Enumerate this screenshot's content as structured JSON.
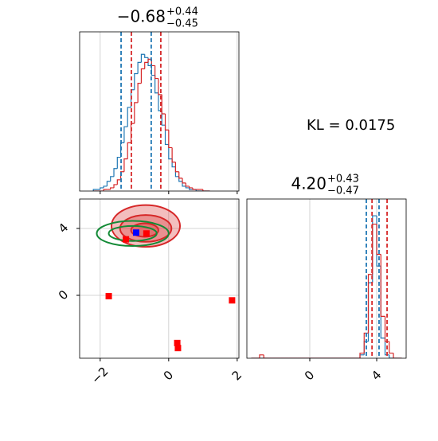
{
  "chart_data": [
    {
      "type": "histogram",
      "title": {
        "value": "−0.68",
        "plus": "+0.44",
        "minus": "−0.45"
      },
      "bins": [
        -2.2,
        -2.1,
        -2.0,
        -1.9,
        -1.8,
        -1.7,
        -1.6,
        -1.5,
        -1.4,
        -1.3,
        -1.2,
        -1.1,
        -1.0,
        -0.9,
        -0.8,
        -0.7,
        -0.6,
        -0.5,
        -0.4,
        -0.3,
        -0.2,
        -0.1,
        0.0,
        0.1,
        0.2,
        0.3,
        0.4,
        0.5,
        0.6,
        0.7,
        0.8,
        0.9,
        1.0,
        1.1,
        1.2
      ],
      "series": [
        {
          "color": "#1f77b4",
          "values": [
            1,
            1,
            2,
            3,
            6,
            9,
            14,
            21,
            30,
            40,
            52,
            63,
            73,
            80,
            85,
            83,
            78,
            72,
            61,
            50,
            41,
            29,
            20,
            15,
            9,
            6,
            3,
            2,
            1,
            1,
            0,
            0,
            0,
            0
          ]
        },
        {
          "color": "#d62728",
          "values": [
            0,
            0,
            0,
            1,
            1,
            2,
            4,
            7,
            12,
            20,
            30,
            42,
            55,
            67,
            76,
            80,
            82,
            78,
            70,
            60,
            48,
            38,
            27,
            18,
            12,
            8,
            5,
            3,
            2,
            1,
            1,
            1,
            0,
            0
          ]
        }
      ],
      "lines": [
        {
          "color": "#1f77b4",
          "values": [
            -1.39,
            -0.51
          ]
        },
        {
          "color": "#d62728",
          "values": [
            -1.09,
            -0.23
          ]
        }
      ],
      "xlim": [
        -2.6,
        2.05
      ],
      "ylim": [
        0,
        99
      ],
      "xticks": [
        -2,
        0,
        2
      ],
      "grid": true
    },
    {
      "type": "scatter",
      "series": [
        {
          "color": "#ff0000",
          "x": [
            -1.75,
            1.85,
            0.25,
            0.27,
            -1.25,
            -0.65
          ],
          "y": [
            -0.05,
            -0.3,
            -2.85,
            -3.15,
            3.35,
            3.7
          ]
        },
        {
          "color": "#0000ff",
          "x": [
            -0.95
          ],
          "y": [
            3.75
          ]
        }
      ],
      "contours": [
        {
          "color": "#d62728",
          "fill": true,
          "cx": -0.67,
          "cy": 4.15,
          "rx": 1.0,
          "ry": 1.25
        },
        {
          "color": "#d62728",
          "fill": true,
          "cx": -0.67,
          "cy": 4.0,
          "rx": 0.75,
          "ry": 0.8
        },
        {
          "color": "#d62728",
          "fill": true,
          "cx": -0.7,
          "cy": 3.9,
          "rx": 0.4,
          "ry": 0.4
        },
        {
          "color": "#138a36",
          "fill": false,
          "cx": -1.05,
          "cy": 3.7,
          "rx": 1.05,
          "ry": 0.75
        },
        {
          "color": "#138a36",
          "fill": false,
          "cx": -1.05,
          "cy": 3.7,
          "rx": 0.7,
          "ry": 0.45
        }
      ],
      "xlim": [
        -2.6,
        2.05
      ],
      "ylim": [
        -3.76,
        5.76
      ],
      "xticks": [
        {
          "value": -2,
          "label": "−2"
        },
        0,
        2
      ],
      "yticks": [
        0,
        4
      ],
      "grid": true
    },
    {
      "type": "histogram",
      "title": {
        "value": "4.20",
        "plus": "+0.43",
        "minus": "−0.47"
      },
      "bins": [
        -3.5,
        -3.25,
        -3.0,
        -2.75,
        -2.5,
        -2.25,
        -2.0,
        -1.75,
        -1.5,
        -1.25,
        -1.0,
        -0.75,
        -0.5,
        -0.25,
        0.0,
        0.25,
        0.5,
        0.75,
        1.0,
        1.25,
        1.5,
        1.75,
        2.0,
        2.25,
        2.5,
        2.75,
        3.0,
        3.25,
        3.5,
        3.75,
        4.0,
        4.25,
        4.5,
        4.75,
        5.0,
        5.25,
        5.5
      ],
      "series": [
        {
          "color": "#1f77b4",
          "values": [
            0,
            0,
            0,
            0,
            0,
            0,
            0,
            0,
            0,
            0,
            0,
            0,
            0,
            0,
            0,
            0,
            0,
            0,
            0,
            0,
            0,
            0,
            0,
            0,
            0,
            0,
            2,
            10,
            45,
            85,
            55,
            12,
            2,
            0,
            0,
            0
          ]
        },
        {
          "color": "#d62728",
          "values": [
            0,
            0,
            2,
            0,
            0,
            0,
            0,
            0,
            0,
            0,
            0,
            0,
            0,
            0,
            0,
            0,
            0,
            0,
            0,
            0,
            0,
            0,
            0,
            0,
            0,
            0,
            3,
            15,
            50,
            80,
            62,
            25,
            10,
            3,
            0,
            0
          ]
        }
      ],
      "lines": [
        {
          "color": "#1f77b4",
          "values": [
            3.38,
            4.14
          ]
        },
        {
          "color": "#d62728",
          "values": [
            3.72,
            4.62
          ]
        }
      ],
      "xlim": [
        -3.76,
        5.76
      ],
      "ylim": [
        0,
        95
      ],
      "xticks": [
        0,
        4
      ],
      "grid": true
    }
  ],
  "annotation": "KL = 0.0175"
}
